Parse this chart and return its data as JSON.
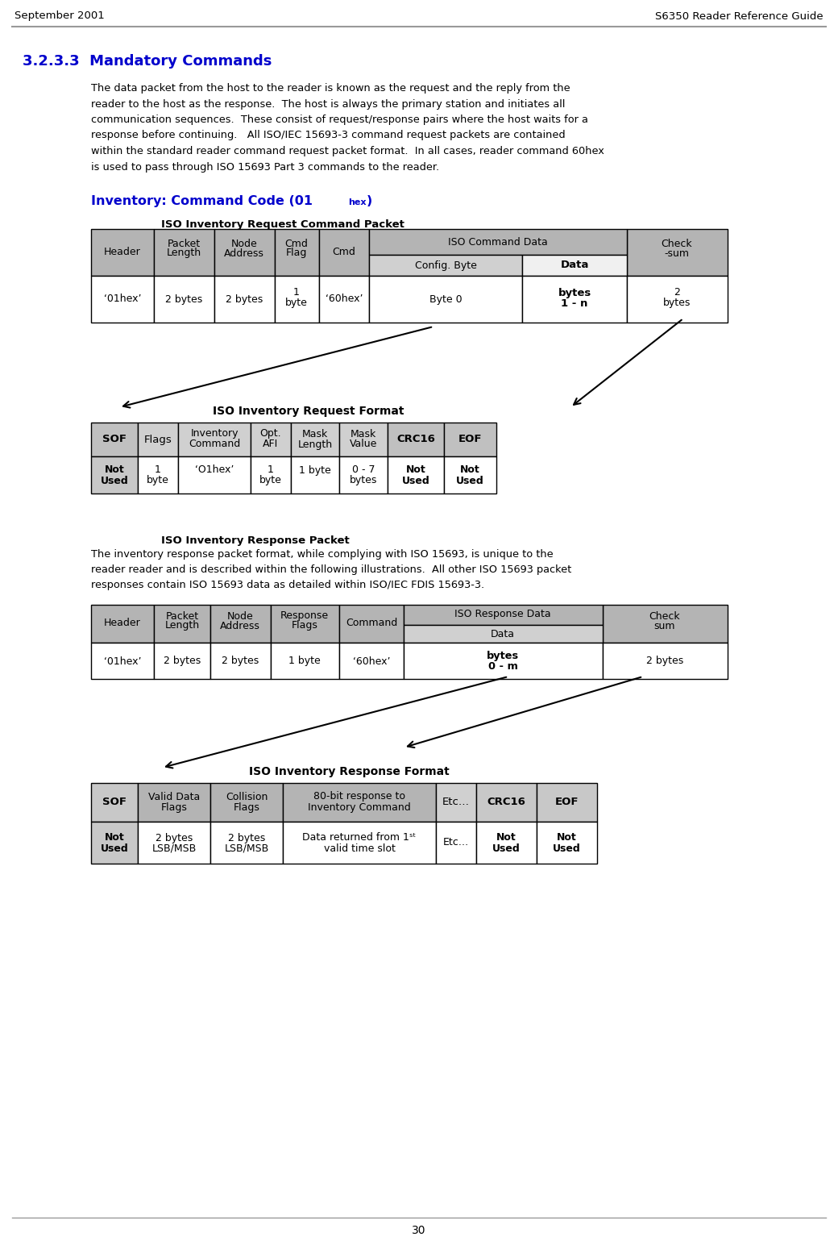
{
  "header_left": "September 2001",
  "header_right": "S6350 Reader Reference Guide",
  "page_number": "30",
  "section_title": "3.2.3.3  Mandatory Commands",
  "bg_color": "#ffffff",
  "gray_h": "#b4b4b4",
  "gray_sh": "#d0d0d0",
  "gray_light": "#e8e8e8",
  "white": "#ffffff",
  "title_color": "#0000cc",
  "black": "#000000",
  "body_lines": [
    "The data packet from the host to the reader is known as the request and the reply from the",
    "reader to the host as the response.  The host is always the primary station and initiates all",
    "communication sequences.  These consist of request/response pairs where the host waits for a",
    "response before continuing.   All ISO/IEC 15693-3 command request packets are contained",
    "within the standard reader command request packet format.  In all cases, reader command 60hex",
    "is used to pass through ISO 15693 Part 3 commands to the reader."
  ],
  "resp_lines": [
    "The inventory response packet format, while complying with ISO 15693, is unique to the",
    "reader reader and is described within the following illustrations.  All other ISO 15693 packet",
    "responses contain ISO 15693 data as detailed within ISO/IEC FDIS 15693-3."
  ]
}
